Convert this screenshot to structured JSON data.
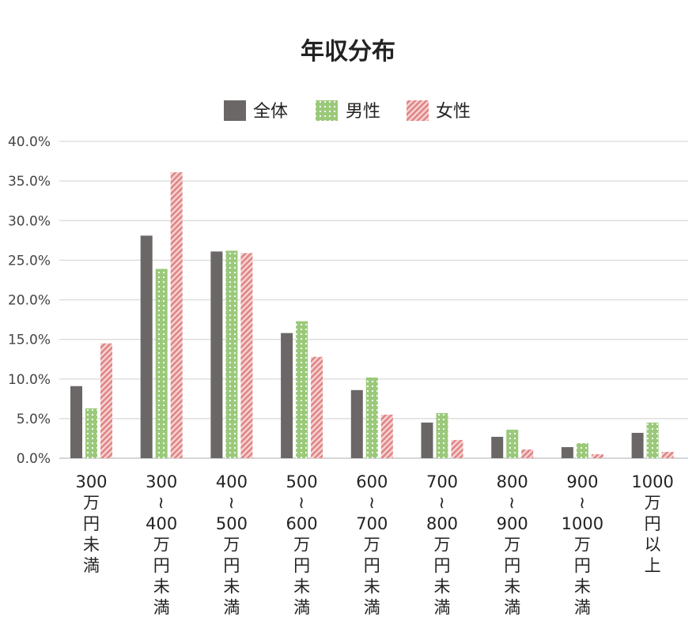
{
  "chart_data": {
    "type": "bar",
    "title": "年収分布",
    "xlabel": "",
    "ylabel": "",
    "ylim": [
      0,
      40
    ],
    "y_ticks": [
      "0.0%",
      "5.0%",
      "10.0%",
      "15.0%",
      "20.0%",
      "25.0%",
      "30.0%",
      "35.0%",
      "40.0%"
    ],
    "grid": true,
    "legend_position": "top-center",
    "categories": [
      "300万円未満",
      "300~400万円未満",
      "400~500万円未満",
      "500~600万円未満",
      "600~700万円未満",
      "700~800万円未満",
      "800~900万円未満",
      "900~1000万円未満",
      "1000万円以上"
    ],
    "category_label_lines": [
      [
        "300",
        "万",
        "円",
        "未",
        "満"
      ],
      [
        "300",
        "~",
        "400",
        "万",
        "円",
        "未",
        "満"
      ],
      [
        "400",
        "~",
        "500",
        "万",
        "円",
        "未",
        "満"
      ],
      [
        "500",
        "~",
        "600",
        "万",
        "円",
        "未",
        "満"
      ],
      [
        "600",
        "~",
        "700",
        "万",
        "円",
        "未",
        "満"
      ],
      [
        "700",
        "~",
        "800",
        "万",
        "円",
        "未",
        "満"
      ],
      [
        "800",
        "~",
        "900",
        "万",
        "円",
        "未",
        "満"
      ],
      [
        "900",
        "~",
        "1000",
        "万",
        "円",
        "未",
        "満"
      ],
      [
        "1000",
        "万",
        "円",
        "以",
        "上"
      ]
    ],
    "series": [
      {
        "name": "全体",
        "color": "#6b6766",
        "pattern": "solid",
        "values": [
          9.1,
          28.1,
          26.1,
          15.8,
          8.6,
          4.5,
          2.7,
          1.4,
          3.2
        ]
      },
      {
        "name": "男性",
        "color": "#9bc97a",
        "pattern": "dots",
        "values": [
          6.3,
          23.9,
          26.2,
          17.3,
          10.2,
          5.7,
          3.6,
          1.9,
          4.5
        ]
      },
      {
        "name": "女性",
        "color": "#e08585",
        "pattern": "diagonal",
        "values": [
          14.5,
          36.1,
          25.9,
          12.8,
          5.5,
          2.3,
          1.1,
          0.5,
          0.8
        ]
      }
    ]
  }
}
